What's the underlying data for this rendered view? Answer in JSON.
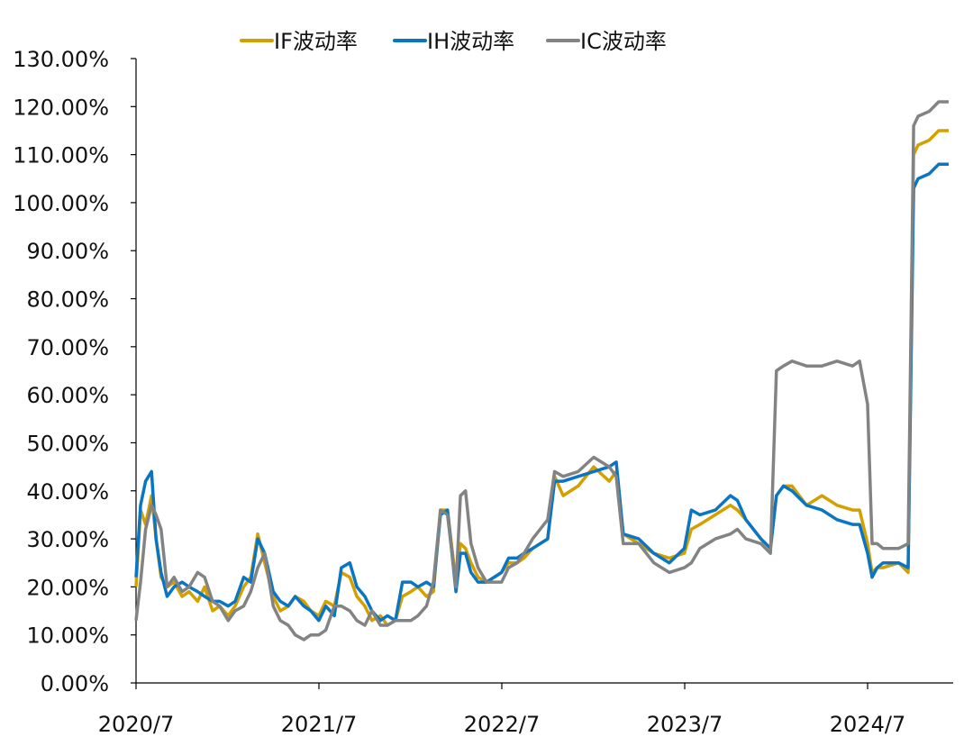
{
  "chart_data": {
    "type": "line",
    "title": "",
    "xlabel": "",
    "ylabel": "",
    "ylim": [
      0,
      130
    ],
    "y_ticks": [
      "0.00%",
      "10.00%",
      "20.00%",
      "30.00%",
      "40.00%",
      "50.00%",
      "60.00%",
      "70.00%",
      "80.00%",
      "90.00%",
      "100.00%",
      "110.00%",
      "120.00%",
      "130.00%"
    ],
    "x_ticks": [
      "2020/7",
      "2021/7",
      "2022/7",
      "2023/7",
      "2024/7"
    ],
    "legend_position": "top",
    "grid": false,
    "x": [
      "2020-07-01",
      "2020-07-10",
      "2020-07-20",
      "2020-08-01",
      "2020-08-10",
      "2020-08-20",
      "2020-09-01",
      "2020-09-15",
      "2020-10-01",
      "2020-10-15",
      "2020-11-01",
      "2020-11-15",
      "2020-12-01",
      "2020-12-15",
      "2021-01-01",
      "2021-01-15",
      "2021-02-01",
      "2021-02-15",
      "2021-03-01",
      "2021-03-15",
      "2021-04-01",
      "2021-04-15",
      "2021-05-01",
      "2021-05-15",
      "2021-06-01",
      "2021-06-15",
      "2021-07-01",
      "2021-07-15",
      "2021-08-01",
      "2021-08-15",
      "2021-09-01",
      "2021-09-15",
      "2021-10-01",
      "2021-10-15",
      "2021-11-01",
      "2021-11-15",
      "2021-12-01",
      "2021-12-15",
      "2022-01-01",
      "2022-01-15",
      "2022-02-01",
      "2022-02-15",
      "2022-03-01",
      "2022-03-15",
      "2022-04-01",
      "2022-04-10",
      "2022-04-20",
      "2022-05-01",
      "2022-05-15",
      "2022-06-01",
      "2022-07-01",
      "2022-07-15",
      "2022-08-01",
      "2022-08-15",
      "2022-09-01",
      "2022-10-01",
      "2022-10-15",
      "2022-11-01",
      "2022-12-01",
      "2023-01-01",
      "2023-02-01",
      "2023-02-15",
      "2023-03-01",
      "2023-04-01",
      "2023-05-01",
      "2023-06-01",
      "2023-07-01",
      "2023-07-15",
      "2023-08-01",
      "2023-09-01",
      "2023-10-01",
      "2023-10-15",
      "2023-11-01",
      "2023-12-01",
      "2023-12-20",
      "2024-01-01",
      "2024-01-15",
      "2024-02-01",
      "2024-03-01",
      "2024-04-01",
      "2024-05-01",
      "2024-06-01",
      "2024-06-15",
      "2024-07-01",
      "2024-07-10",
      "2024-07-20",
      "2024-08-01",
      "2024-09-01",
      "2024-09-20",
      "2024-10-01",
      "2024-10-10",
      "2024-11-01",
      "2024-11-20",
      "2024-12-10"
    ],
    "series": [
      {
        "name": "IF波动率",
        "color": "#D4A000",
        "values": [
          20,
          36,
          33,
          39,
          30,
          22,
          20,
          21,
          18,
          19,
          17,
          20,
          15,
          16,
          14,
          16,
          20,
          22,
          31,
          25,
          18,
          15,
          16,
          18,
          17,
          15,
          14,
          17,
          16,
          23,
          22,
          18,
          16,
          13,
          14,
          12,
          13,
          18,
          19,
          20,
          18,
          19,
          36,
          36,
          21,
          29,
          28,
          25,
          22,
          21,
          23,
          25,
          25,
          26,
          28,
          30,
          43,
          39,
          41,
          45,
          42,
          44,
          31,
          29,
          27,
          26,
          27,
          32,
          33,
          35,
          37,
          36,
          34,
          30,
          28,
          39,
          41,
          41,
          37,
          39,
          37,
          36,
          36,
          29,
          23,
          24,
          24,
          25,
          23,
          110,
          112,
          113,
          115,
          115
        ]
      },
      {
        "name": "IH波动率",
        "color": "#0A75C4",
        "values": [
          22,
          37,
          42,
          44,
          30,
          23,
          18,
          20,
          21,
          20,
          19,
          18,
          17,
          17,
          16,
          17,
          22,
          21,
          30,
          27,
          19,
          17,
          16,
          18,
          16,
          15,
          13,
          16,
          14,
          24,
          25,
          20,
          18,
          15,
          13,
          14,
          13,
          21,
          21,
          20,
          21,
          20,
          35,
          36,
          19,
          27,
          27,
          23,
          21,
          21,
          23,
          26,
          26,
          27,
          28,
          30,
          42,
          42,
          43,
          44,
          45,
          46,
          31,
          30,
          27,
          25,
          28,
          36,
          35,
          36,
          39,
          38,
          34,
          30,
          28,
          39,
          41,
          40,
          37,
          36,
          34,
          33,
          33,
          27,
          22,
          24,
          25,
          25,
          24,
          103,
          105,
          106,
          108,
          108
        ]
      },
      {
        "name": "IC波动率",
        "color": "#838383",
        "values": [
          13,
          21,
          32,
          37,
          35,
          32,
          20,
          22,
          19,
          20,
          23,
          22,
          17,
          16,
          13,
          15,
          16,
          19,
          24,
          27,
          16,
          13,
          12,
          10,
          9,
          10,
          10,
          11,
          16,
          16,
          15,
          13,
          12,
          15,
          12,
          12,
          13,
          13,
          13,
          14,
          16,
          21,
          36,
          35,
          20,
          39,
          40,
          29,
          24,
          21,
          21,
          24,
          25,
          27,
          30,
          34,
          44,
          43,
          44,
          47,
          45,
          43,
          29,
          29,
          25,
          23,
          24,
          25,
          28,
          30,
          31,
          32,
          30,
          29,
          27,
          65,
          66,
          67,
          66,
          66,
          67,
          66,
          67,
          58,
          29,
          29,
          28,
          28,
          29,
          116,
          118,
          119,
          121,
          121
        ]
      }
    ]
  }
}
